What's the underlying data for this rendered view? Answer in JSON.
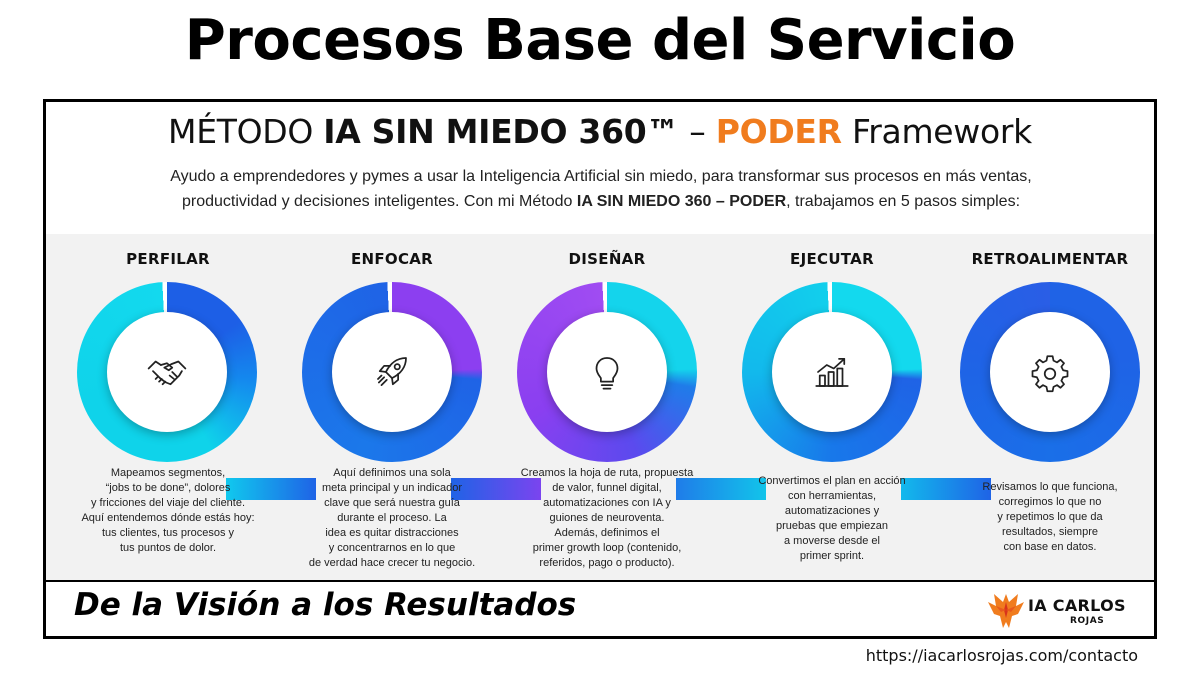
{
  "title": "Procesos Base del Servicio",
  "subtitle": {
    "prefix": "MÉTODO ",
    "bold": "IA SIN MIEDO 360™",
    "dash": " – ",
    "accent": "PODER",
    "suffix": " Framework"
  },
  "intro": {
    "line1": "Ayudo a emprendedores y pymes a usar la Inteligencia Artificial sin miedo, para transformar sus procesos en más ventas,",
    "line2_prefix": "productividad y decisiones inteligentes. Con mi Método ",
    "line2_bold": "IA SIN MIEDO 360 – PODER",
    "line2_suffix": ", trabajamos en 5 pasos simples:"
  },
  "colors": {
    "accent": "#f07c1e",
    "cyan": "#0fd3ea",
    "blue": "#1f63e6",
    "purple": "#8a3ff0"
  },
  "steps": [
    {
      "title": "PERFILAR",
      "icon": "handshake-icon",
      "desc": [
        "Mapeamos segmentos,",
        "“jobs to be done”, dolores",
        "y fricciones del viaje del cliente.",
        "Aquí entendemos dónde estás hoy:",
        "tus clientes, tus procesos y",
        "tus puntos de dolor."
      ]
    },
    {
      "title": "ENFOCAR",
      "icon": "rocket-icon",
      "desc": [
        "Aquí definimos una sola",
        "meta principal y un indicador",
        "clave que será nuestra guía",
        "durante el proceso. La",
        "idea es quitar distracciones",
        "y concentrarnos en lo que",
        "de verdad hace crecer tu negocio."
      ]
    },
    {
      "title": "DISEÑAR",
      "icon": "lightbulb-icon",
      "desc": [
        "Creamos la hoja de ruta, propuesta",
        "de valor, funnel digital,",
        "automatizaciones con IA y",
        "guiones de neuroventa.",
        "Además, definimos el",
        "primer growth loop (contenido,",
        "referidos, pago o producto)."
      ]
    },
    {
      "title": "EJECUTAR",
      "icon": "growth-chart-icon",
      "desc": [
        "Convertimos el plan en acción",
        "con herramientas,",
        "automatizaciones y",
        "pruebas que empiezan",
        "a moverse desde el",
        "primer sprint."
      ]
    },
    {
      "title": "RETROALIMENTAR",
      "icon": "gear-icon",
      "desc": [
        "Revisamos lo que funciona,",
        "corregimos lo que no",
        "y repetimos lo que da",
        "resultados, siempre",
        "con base en datos."
      ]
    }
  ],
  "tagline": "De la Visión a los Resultados",
  "logo": {
    "name": "IA CARLOS",
    "sub": "ROJAS"
  },
  "url": "https://iacarlosrojas.com/contacto"
}
